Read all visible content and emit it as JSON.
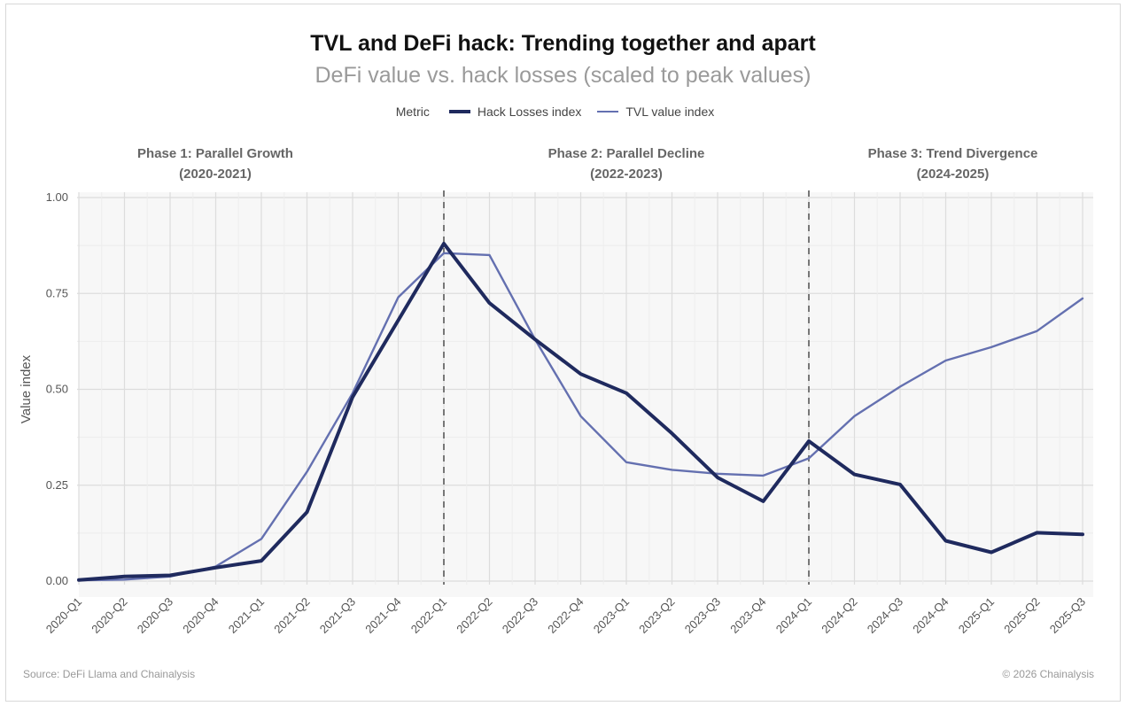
{
  "title": "TVL and DeFi hack: Trending together and apart",
  "subtitle": "DeFi value vs. hack losses (scaled to peak values)",
  "legend": {
    "title": "Metric",
    "items": [
      {
        "label": "Hack Losses index",
        "color": "#1f2a5e"
      },
      {
        "label": "TVL value index",
        "color": "#6470b0"
      }
    ]
  },
  "footer": {
    "source": "Source: DeFi Llama and Chainalysis",
    "copyright": "© 2026 Chainalysis"
  },
  "chart_data": {
    "type": "line",
    "title": "TVL and DeFi hack: Trending together and apart",
    "subtitle": "DeFi value vs. hack losses (scaled to peak values)",
    "xlabel": "",
    "ylabel": "Value index",
    "ylim": [
      0,
      1
    ],
    "yticks": [
      "0.00",
      "0.25",
      "0.50",
      "0.75",
      "1.00"
    ],
    "grid": true,
    "legend_position": "top",
    "categories": [
      "2020-Q1",
      "2020-Q2",
      "2020-Q3",
      "2020-Q4",
      "2021-Q1",
      "2021-Q2",
      "2021-Q3",
      "2021-Q4",
      "2022-Q1",
      "2022-Q2",
      "2022-Q3",
      "2022-Q4",
      "2023-Q1",
      "2023-Q2",
      "2023-Q3",
      "2023-Q4",
      "2024-Q1",
      "2024-Q2",
      "2024-Q3",
      "2024-Q4",
      "2025-Q1",
      "2025-Q2",
      "2025-Q3"
    ],
    "series": [
      {
        "name": "Hack Losses index",
        "color": "#1f2a5e",
        "values": [
          0.003,
          0.012,
          0.015,
          0.035,
          0.053,
          0.18,
          0.48,
          0.68,
          0.88,
          0.725,
          0.63,
          0.54,
          0.49,
          0.385,
          0.27,
          0.208,
          0.365,
          0.278,
          0.252,
          0.105,
          0.075,
          0.126,
          0.122
        ]
      },
      {
        "name": "TVL value index",
        "color": "#6470b0",
        "values": [
          0.002,
          0.004,
          0.012,
          0.038,
          0.11,
          0.285,
          0.49,
          0.74,
          0.855,
          0.85,
          0.63,
          0.43,
          0.31,
          0.29,
          0.28,
          0.275,
          0.32,
          0.43,
          0.507,
          0.575,
          0.61,
          0.652,
          0.737
        ]
      }
    ],
    "phases": [
      {
        "label": "Phase 1: Parallel Growth",
        "years": "(2020-2021)"
      },
      {
        "label": "Phase 2: Parallel Decline",
        "years": "(2022-2023)"
      },
      {
        "label": "Phase 3: Trend Divergence",
        "years": "(2024-2025)"
      }
    ],
    "phase_dividers_at": [
      "2022-Q1",
      "2024-Q1"
    ]
  }
}
